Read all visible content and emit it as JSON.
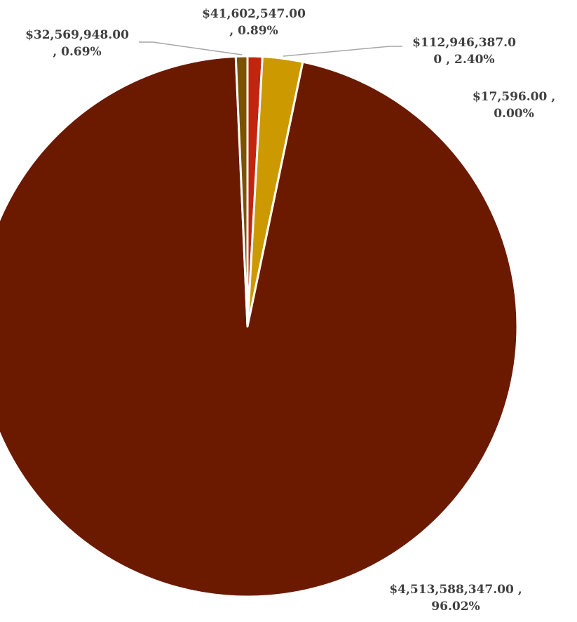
{
  "chart_data": {
    "type": "pie",
    "title": "",
    "slices": [
      {
        "value": 41602547.0,
        "percent": 0.89,
        "color": "#C0260E",
        "label_lines": [
          "$41,602,547.00",
          ", 0.89%"
        ]
      },
      {
        "value": 112946387.0,
        "percent": 2.4,
        "color": "#CC9900",
        "label_lines": [
          "$112,946,387.0",
          "0 , 2.40%"
        ]
      },
      {
        "value": 17596.0,
        "percent": 0.0,
        "color": "#7A1C05",
        "label_lines": [
          "$17,596.00 ,",
          "0.00%"
        ]
      },
      {
        "value": 4513588347.0,
        "percent": 96.02,
        "color": "#6B1A00",
        "label_lines": [
          "$4,513,588,347.00 ,",
          "96.02%"
        ]
      },
      {
        "value": 32569948.0,
        "percent": 0.69,
        "color": "#7A5200",
        "label_lines": [
          "$32,569,948.00",
          ", 0.69%"
        ]
      }
    ]
  }
}
